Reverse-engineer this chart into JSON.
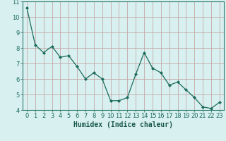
{
  "x": [
    0,
    1,
    2,
    3,
    4,
    5,
    6,
    7,
    8,
    9,
    10,
    11,
    12,
    13,
    14,
    15,
    16,
    17,
    18,
    19,
    20,
    21,
    22,
    23
  ],
  "y": [
    10.6,
    8.2,
    7.7,
    8.1,
    7.4,
    7.5,
    6.8,
    6.0,
    6.4,
    6.0,
    4.6,
    4.6,
    4.8,
    6.3,
    7.7,
    6.7,
    6.4,
    5.6,
    5.8,
    5.3,
    4.8,
    4.2,
    4.1,
    4.5
  ],
  "line_color": "#1a6b5a",
  "marker": "D",
  "marker_size": 2,
  "bg_color": "#d9f0f0",
  "grid_color": "#c4a8a8",
  "xlabel": "Humidex (Indice chaleur)",
  "ylabel": "",
  "title": "",
  "xlim": [
    -0.5,
    23.5
  ],
  "ylim": [
    4,
    11
  ],
  "yticks": [
    4,
    5,
    6,
    7,
    8,
    9,
    10,
    11
  ],
  "xticks": [
    0,
    1,
    2,
    3,
    4,
    5,
    6,
    7,
    8,
    9,
    10,
    11,
    12,
    13,
    14,
    15,
    16,
    17,
    18,
    19,
    20,
    21,
    22,
    23
  ],
  "xlabel_fontsize": 7,
  "tick_fontsize": 6,
  "spine_color": "#2a7a6a"
}
